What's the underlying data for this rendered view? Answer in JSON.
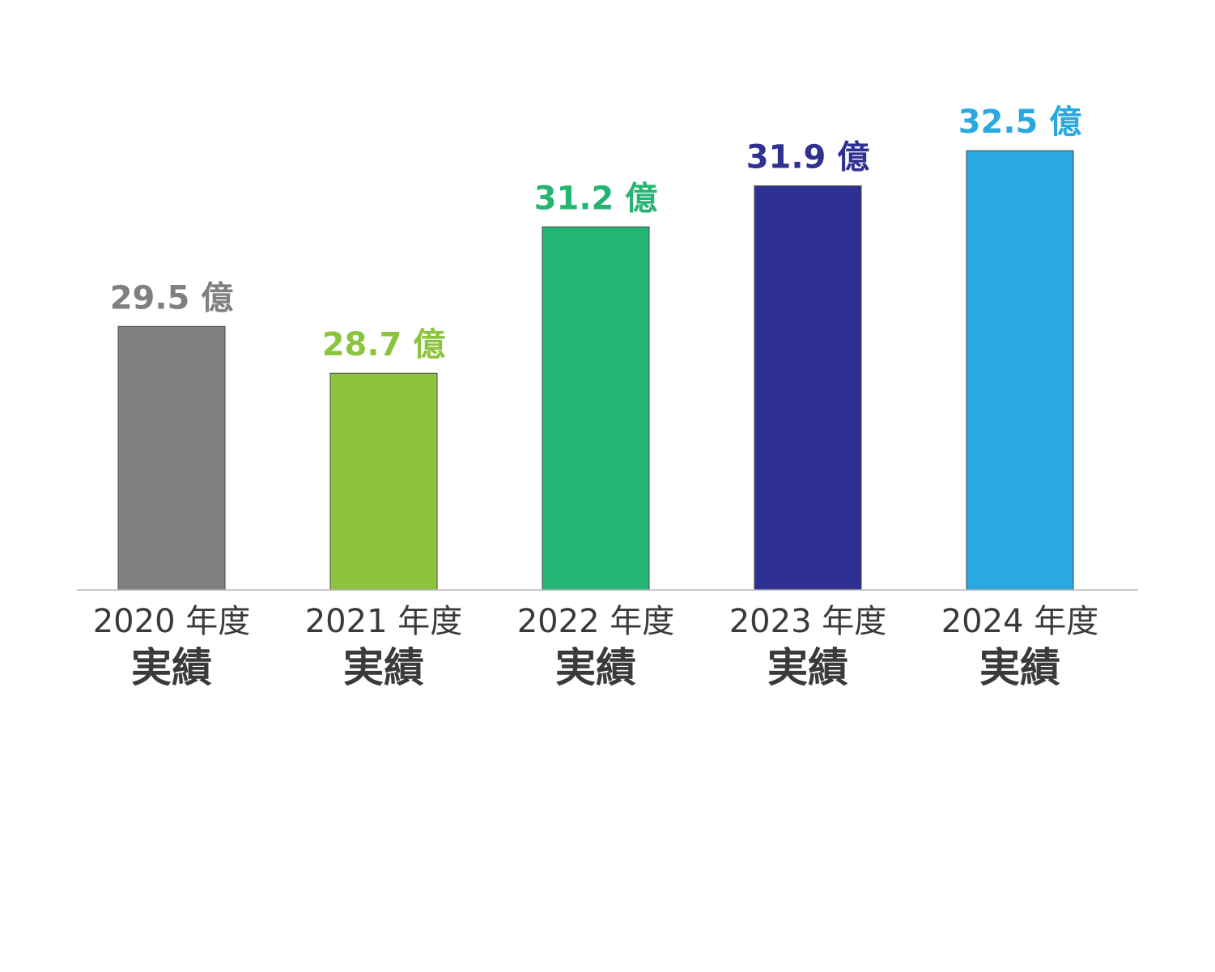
{
  "chart_data": {
    "type": "bar",
    "categories": [
      "2020 年度",
      "2021 年度",
      "2022 年度",
      "2023 年度",
      "2024 年度"
    ],
    "category_sublabels": [
      "実績",
      "実績",
      "実績",
      "実績",
      "実績"
    ],
    "values": [
      29.5,
      28.7,
      31.2,
      31.9,
      32.5
    ],
    "value_labels": [
      "29.5 億",
      "28.7 億",
      "31.2 億",
      "31.9 億",
      "32.5 億"
    ],
    "colors": [
      "#808080",
      "#8cc43f",
      "#25b573",
      "#2e3192",
      "#29a9e0"
    ],
    "title": "",
    "xlabel": "",
    "ylabel": "",
    "ylim": [
      25.0,
      33.0
    ],
    "grid": false,
    "legend": "none"
  }
}
